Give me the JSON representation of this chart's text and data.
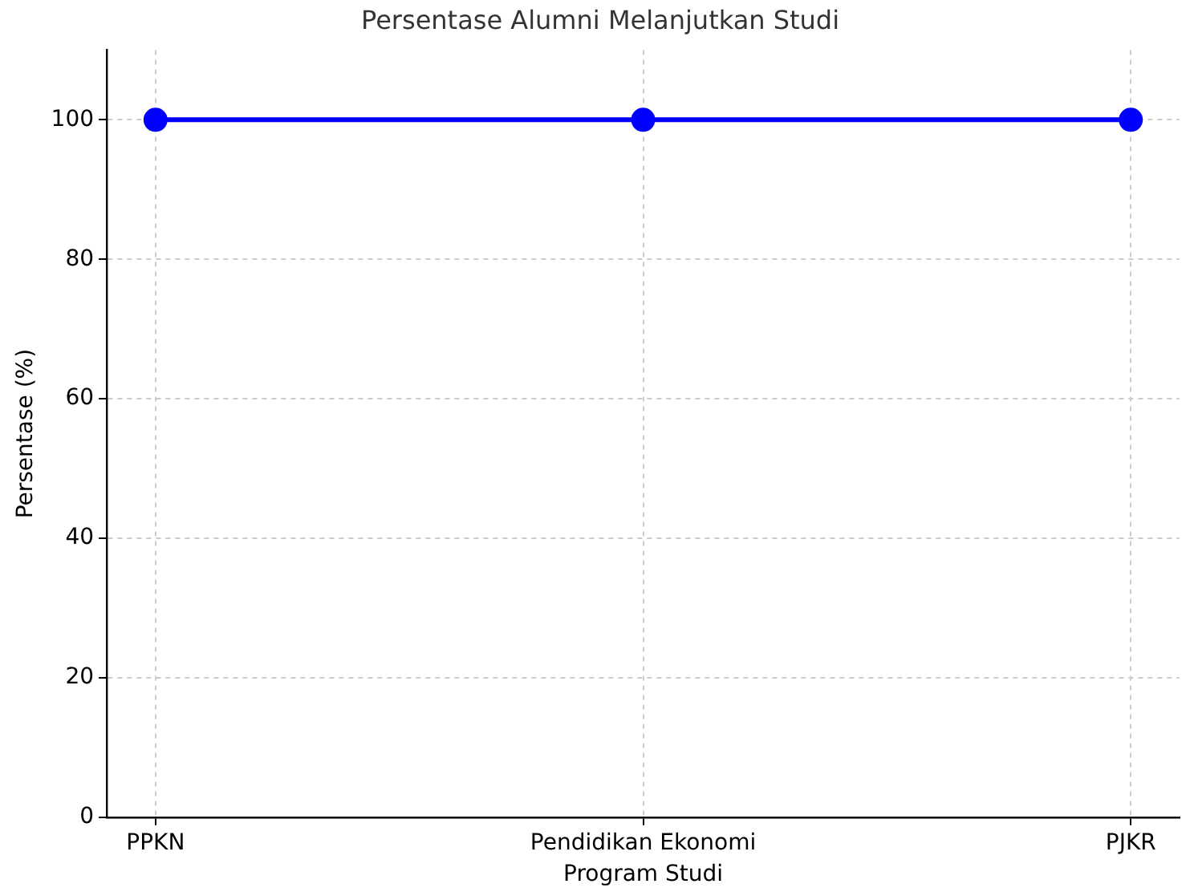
{
  "chart_data": {
    "type": "line",
    "title": "Persentase Alumni Melanjutkan Studi",
    "xlabel": "Program Studi",
    "ylabel": "Persentase (%)",
    "categories": [
      "PPKN",
      "Pendidikan Ekonomi",
      "PJKR"
    ],
    "series": [
      {
        "color": "#0000ff",
        "values": [
          100,
          100,
          100
        ]
      }
    ],
    "ylim": [
      0,
      110
    ],
    "yticks": [
      0,
      20,
      40,
      60,
      80,
      100
    ],
    "grid": true,
    "marker": "circle",
    "line_style": "solid",
    "legend": false
  }
}
